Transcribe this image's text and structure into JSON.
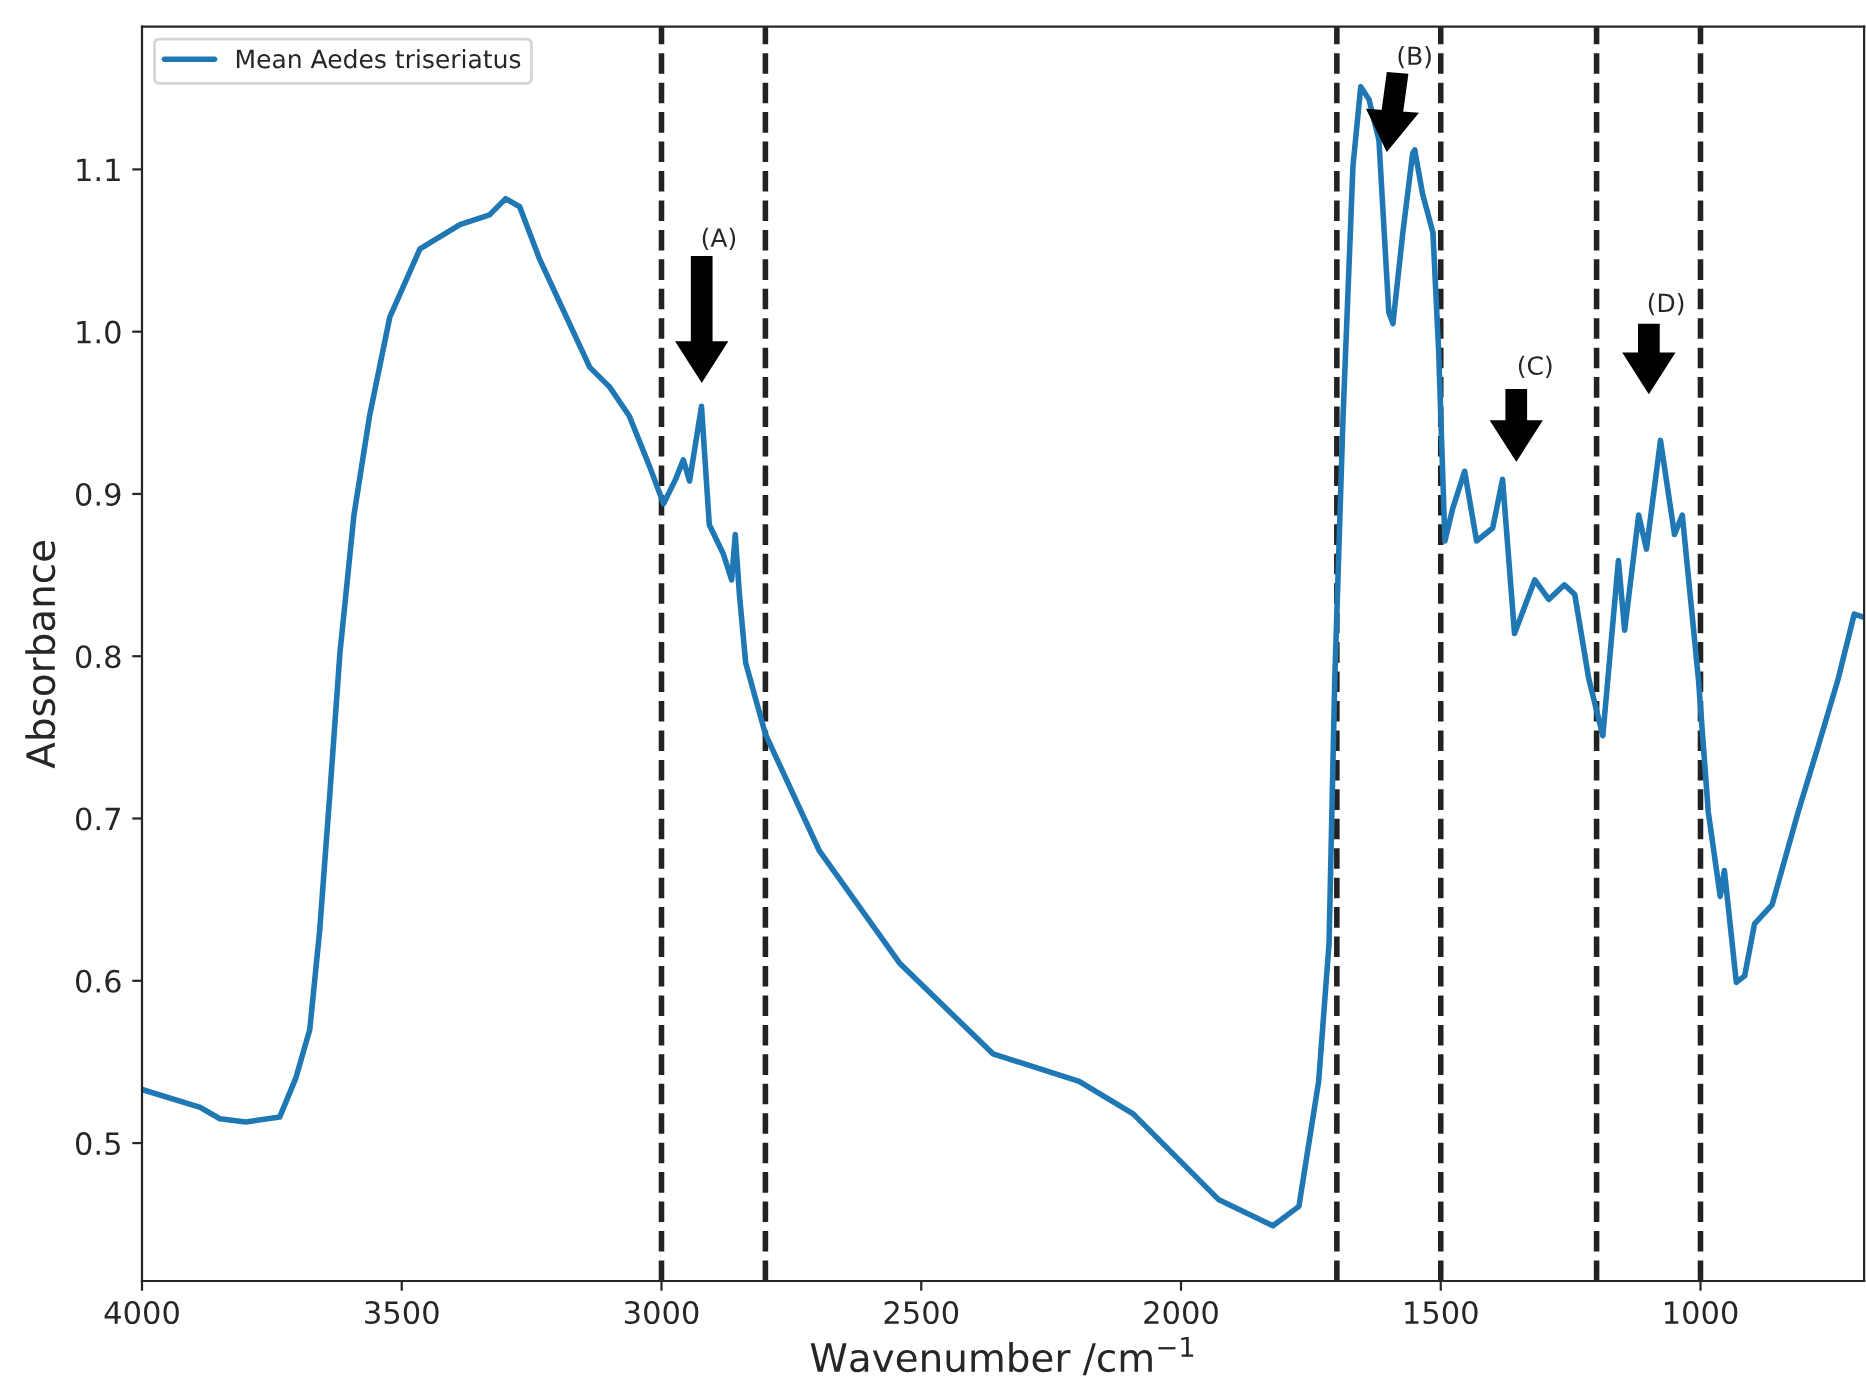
{
  "chart_data": {
    "type": "line",
    "xlabel": "Wavenumber /cm$^{−1}$",
    "ylabel": "Absorbance",
    "x": [
      4000,
      3888,
      3850,
      3800,
      3735,
      3704,
      3677,
      3658,
      3638,
      3619,
      3592,
      3562,
      3523,
      3465,
      3388,
      3331,
      3300,
      3273,
      3235,
      3196,
      3138,
      3100,
      3062,
      3023,
      2996,
      2973,
      2958,
      2946,
      2923,
      2908,
      2881,
      2865,
      2858,
      2850,
      2838,
      2800,
      2696,
      2542,
      2362,
      2196,
      2092,
      1927,
      1823,
      1773,
      1735,
      1715,
      1704,
      1688,
      1669,
      1654,
      1638,
      1619,
      1600,
      1592,
      1573,
      1554,
      1550,
      1535,
      1515,
      1504,
      1492,
      1477,
      1454,
      1431,
      1400,
      1381,
      1358,
      1319,
      1292,
      1262,
      1242,
      1215,
      1188,
      1158,
      1146,
      1119,
      1104,
      1077,
      1050,
      1035,
      1004,
      985,
      962,
      954,
      931,
      915,
      896,
      862,
      812,
      773,
      735,
      704,
      685
    ],
    "series": [
      {
        "name": "Mean Aedes triseriatus",
        "color": "#1f77b4",
        "values": [
          0.533,
          0.522,
          0.515,
          0.513,
          0.516,
          0.54,
          0.57,
          0.631,
          0.717,
          0.802,
          0.887,
          0.948,
          1.009,
          1.051,
          1.066,
          1.072,
          1.082,
          1.077,
          1.045,
          1.018,
          0.978,
          0.966,
          0.948,
          0.917,
          0.894,
          0.909,
          0.921,
          0.908,
          0.954,
          0.881,
          0.863,
          0.847,
          0.875,
          0.838,
          0.796,
          0.752,
          0.68,
          0.611,
          0.555,
          0.538,
          0.518,
          0.465,
          0.449,
          0.461,
          0.538,
          0.623,
          0.786,
          0.948,
          1.102,
          1.151,
          1.143,
          1.118,
          1.012,
          1.005,
          1.061,
          1.11,
          1.112,
          1.085,
          1.061,
          0.988,
          0.871,
          0.891,
          0.914,
          0.871,
          0.879,
          0.909,
          0.814,
          0.847,
          0.835,
          0.844,
          0.838,
          0.786,
          0.751,
          0.859,
          0.816,
          0.887,
          0.866,
          0.933,
          0.875,
          0.887,
          0.786,
          0.704,
          0.652,
          0.668,
          0.599,
          0.603,
          0.635,
          0.647,
          0.704,
          0.745,
          0.786,
          0.826,
          0.824
        ]
      }
    ],
    "xlim": [
      4000,
      685
    ],
    "xticks": [
      4000,
      3500,
      3000,
      2500,
      2000,
      1500,
      1000
    ],
    "ylim": [
      0.415,
      1.188
    ],
    "yticks": [
      0.5,
      0.6,
      0.7,
      0.8,
      0.9,
      {
        "value": 1.0,
        "label": "1.0"
      },
      1.1
    ],
    "ref_lines": [
      {
        "axis": "x",
        "value": 3000,
        "color": "#222222",
        "line_style": "dashed"
      },
      {
        "axis": "x",
        "value": 2800,
        "color": "#222222",
        "line_style": "dashed"
      },
      {
        "axis": "x",
        "value": 1700,
        "color": "#222222",
        "line_style": "dashed"
      },
      {
        "axis": "x",
        "value": 1500,
        "color": "#222222",
        "line_style": "dashed"
      },
      {
        "axis": "x",
        "value": 1200,
        "color": "#222222",
        "line_style": "dashed"
      },
      {
        "axis": "x",
        "value": 1000,
        "color": "#222222",
        "line_style": "dashed"
      }
    ],
    "annotations": [
      "(A)",
      "(B)",
      "(C)",
      "(D)"
    ],
    "legend": "top left",
    "grid": false,
    "marker": "none",
    "line_style": "solid"
  }
}
